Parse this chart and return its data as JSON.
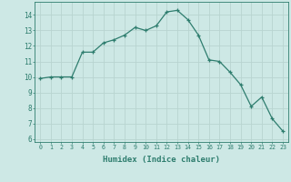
{
  "x": [
    0,
    1,
    2,
    3,
    4,
    5,
    6,
    7,
    8,
    9,
    10,
    11,
    12,
    13,
    14,
    15,
    16,
    17,
    18,
    19,
    20,
    21,
    22,
    23
  ],
  "y": [
    9.9,
    10.0,
    10.0,
    10.0,
    11.6,
    11.6,
    12.2,
    12.4,
    12.7,
    13.2,
    13.0,
    13.3,
    14.2,
    14.3,
    13.7,
    12.7,
    11.1,
    11.0,
    10.3,
    9.5,
    8.1,
    8.7,
    7.3,
    6.5
  ],
  "xlabel": "Humidex (Indice chaleur)",
  "xlim": [
    -0.5,
    23.5
  ],
  "ylim": [
    5.8,
    14.85
  ],
  "yticks": [
    6,
    7,
    8,
    9,
    10,
    11,
    12,
    13,
    14
  ],
  "xticks": [
    0,
    1,
    2,
    3,
    4,
    5,
    6,
    7,
    8,
    9,
    10,
    11,
    12,
    13,
    14,
    15,
    16,
    17,
    18,
    19,
    20,
    21,
    22,
    23
  ],
  "line_color": "#2e7d6e",
  "marker": "+",
  "bg_color": "#cde8e5",
  "grid_color": "#b8d4d0",
  "font_color": "#2e7d6e"
}
